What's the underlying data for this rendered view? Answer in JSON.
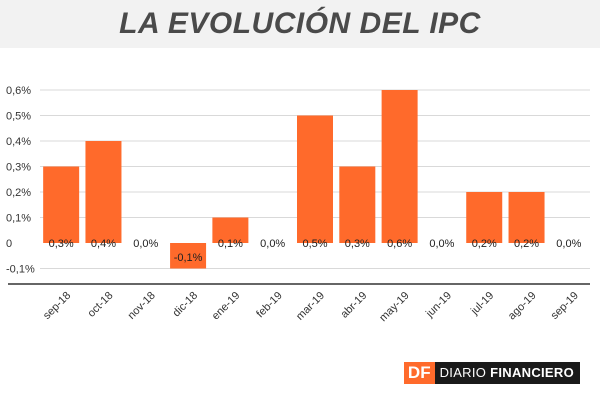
{
  "header": {
    "title": "LA EVOLUCIÓN DEL IPC"
  },
  "brand": {
    "mark": "DF",
    "name_light": "DIARIO",
    "name_bold": "FINANCIERO"
  },
  "colors": {
    "bar": "#ff6a2b",
    "axis": "#333333",
    "grid": "#d9d9d9",
    "title_band": "#f2f2f2"
  },
  "chart_data": {
    "type": "bar",
    "title": "LA EVOLUCIÓN DEL IPC",
    "xlabel": "",
    "ylabel": "",
    "categories": [
      "sep-18",
      "oct-18",
      "nov-18",
      "dic-18",
      "ene-19",
      "feb-19",
      "mar-19",
      "abr-19",
      "may-19",
      "jun-19",
      "jul-19",
      "ago-19",
      "sep-19"
    ],
    "values": [
      0.3,
      0.4,
      0.0,
      -0.1,
      0.1,
      0.0,
      0.5,
      0.3,
      0.6,
      0.0,
      0.2,
      0.2,
      0.0
    ],
    "value_labels": [
      "0,3%",
      "0,4%",
      "0,0%",
      "-0,1%",
      "0,1%",
      "0,0%",
      "0,5%",
      "0,3%",
      "0,6%",
      "0,0%",
      "0,2%",
      "0,2%",
      "0,0%"
    ],
    "yticks": [
      -0.1,
      0,
      0.1,
      0.2,
      0.3,
      0.4,
      0.5,
      0.6
    ],
    "ytick_labels": [
      "-0,1%",
      "0",
      "0,1%",
      "0,2%",
      "0,3%",
      "0,4%",
      "0,5%",
      "0,6%"
    ],
    "ylim": [
      -0.1,
      0.6
    ],
    "grid": true,
    "legend": "none"
  }
}
